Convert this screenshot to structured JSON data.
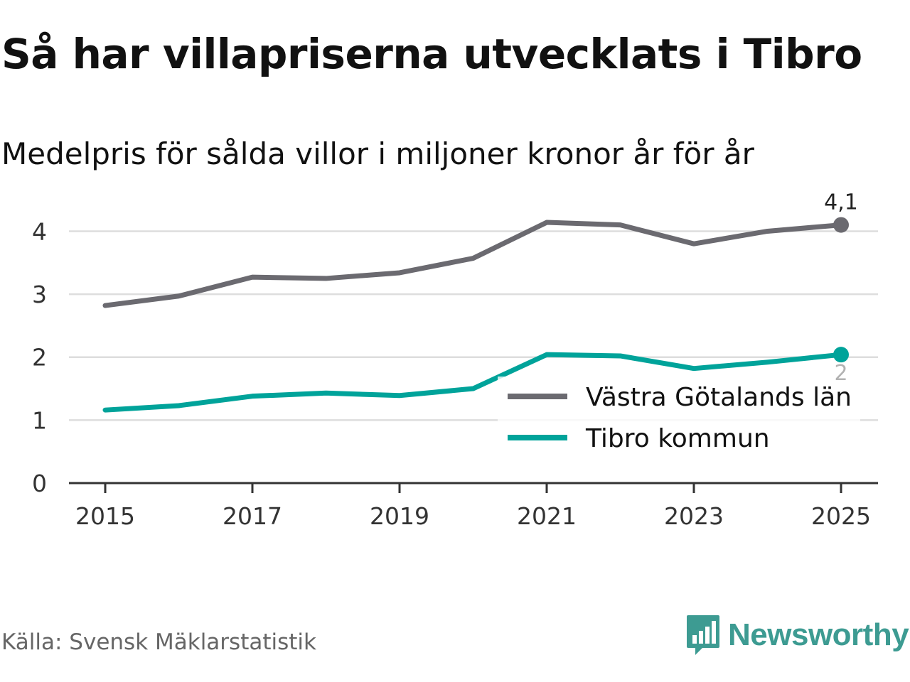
{
  "title": "Så har villapriserna utvecklats i Tibro",
  "subtitle": "Medelpris för sålda villor i miljoner kronor år för år",
  "source": "Källa: Svensk Mäklarstatistik",
  "brand": {
    "name": "Newsworthy",
    "icon": "newsworthy-logo-icon",
    "color": "#3d9b92"
  },
  "chart_data": {
    "type": "line",
    "title": "Så har villapriserna utvecklats i Tibro",
    "subtitle": "Medelpris för sålda villor i miljoner kronor år för år",
    "xlabel": "",
    "ylabel": "",
    "x": [
      2015,
      2016,
      2017,
      2018,
      2019,
      2020,
      2021,
      2022,
      2023,
      2024,
      2025
    ],
    "xticks": [
      "2015",
      "2017",
      "2019",
      "2021",
      "2023",
      "2025"
    ],
    "xtick_values": [
      2015,
      2017,
      2019,
      2021,
      2023,
      2025
    ],
    "yticks": [
      "0",
      "1",
      "2",
      "3",
      "4"
    ],
    "ytick_values": [
      0,
      1,
      2,
      3,
      4
    ],
    "ylim": [
      0,
      4.4
    ],
    "xlim": [
      2014.75,
      2025.25
    ],
    "grid": true,
    "legend_position": "lower-right",
    "series": [
      {
        "name": "Västra Götalands län",
        "color": "#6b6a70",
        "values": [
          2.82,
          2.97,
          3.27,
          3.25,
          3.34,
          3.57,
          4.14,
          4.1,
          3.8,
          4.0,
          4.1
        ],
        "end_label": "4,1"
      },
      {
        "name": "Tibro kommun",
        "color": "#00a39a",
        "values": [
          1.16,
          1.23,
          1.38,
          1.43,
          1.39,
          1.5,
          2.04,
          2.02,
          1.82,
          1.92,
          2.04
        ],
        "end_label": "2"
      }
    ]
  }
}
